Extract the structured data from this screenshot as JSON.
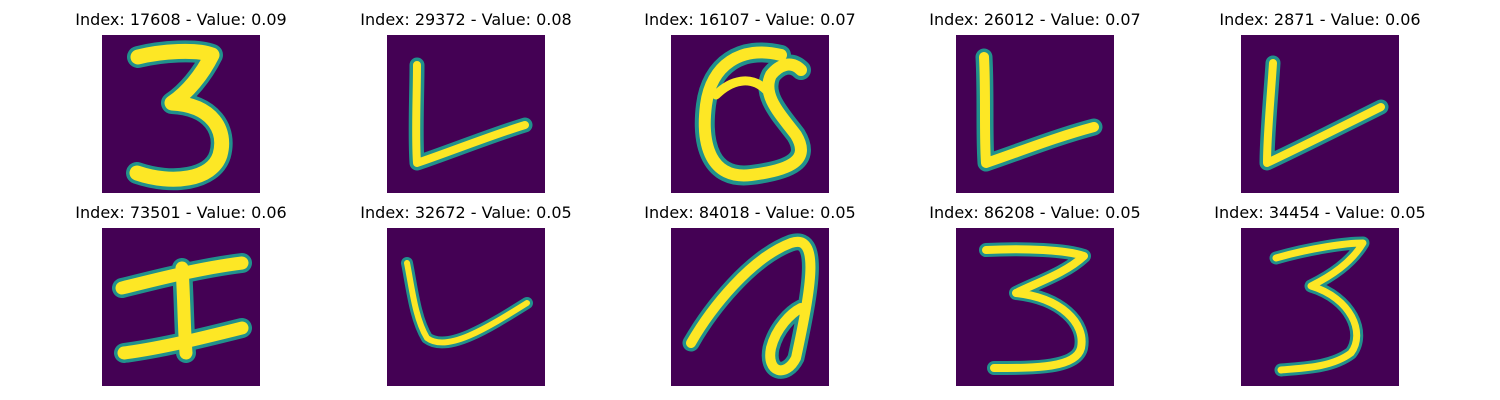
{
  "figure": {
    "background_color": "#440154",
    "colormap": [
      "#440154",
      "#21918c",
      "#fde725"
    ],
    "panels": [
      {
        "index": "17608",
        "value": "0.09",
        "title": "Index: 17608 - Value: 0.09",
        "glyph": "3"
      },
      {
        "index": "29372",
        "value": "0.08",
        "title": "Index: 29372 - Value: 0.08",
        "glyph": "L"
      },
      {
        "index": "16107",
        "value": "0.07",
        "title": "Index: 16107 - Value: 0.07",
        "glyph": "Q"
      },
      {
        "index": "26012",
        "value": "0.07",
        "title": "Index: 26012 - Value: 0.07",
        "glyph": "L"
      },
      {
        "index": "2871",
        "value": "0.06",
        "title": "Index: 2871 - Value: 0.06",
        "glyph": "L"
      },
      {
        "index": "73501",
        "value": "0.06",
        "title": "Index: 73501 - Value: 0.06",
        "glyph": "I"
      },
      {
        "index": "32672",
        "value": "0.05",
        "title": "Index: 32672 - Value: 0.05",
        "glyph": "L"
      },
      {
        "index": "84018",
        "value": "0.05",
        "title": "Index: 84018 - Value: 0.05",
        "glyph": "a"
      },
      {
        "index": "86208",
        "value": "0.05",
        "title": "Index: 86208 - Value: 0.05",
        "glyph": "3"
      },
      {
        "index": "34454",
        "value": "0.05",
        "title": "Index: 34454 - Value: 0.05",
        "glyph": "3"
      }
    ]
  }
}
